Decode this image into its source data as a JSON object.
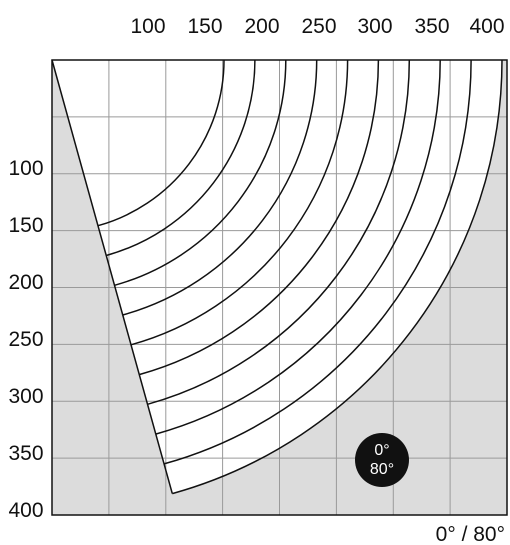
{
  "x_ticks": [
    "100",
    "150",
    "200",
    "250",
    "300",
    "350",
    "400"
  ],
  "y_ticks": [
    "100",
    "150",
    "200",
    "250",
    "300",
    "350",
    "400"
  ],
  "badge": {
    "line1": "0°",
    "line2": "80°"
  },
  "corner_label": "0° / 80°",
  "arc_count": 10,
  "colors": {
    "background_shade": "#dcdcdc",
    "grid": "#9a9a9a",
    "lines": "#111111",
    "badge_fill": "#111111",
    "badge_text": "#ffffff"
  }
}
